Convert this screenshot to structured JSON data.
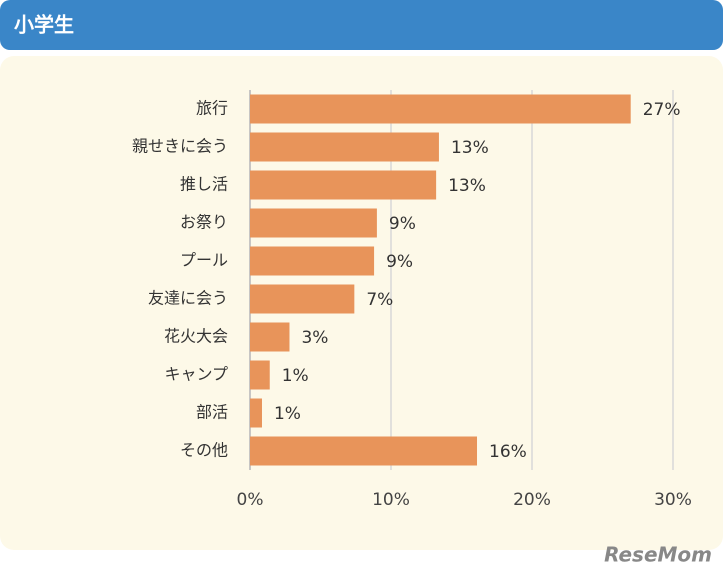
{
  "header": {
    "title": "小学生"
  },
  "chart_data": {
    "type": "bar",
    "orientation": "horizontal",
    "categories": [
      "旅行",
      "親せきに会う",
      "推し活",
      "お祭り",
      "プール",
      "友達に会う",
      "花火大会",
      "キャンプ",
      "部活",
      "その他"
    ],
    "values": [
      27,
      13.4,
      13.2,
      9,
      8.8,
      7.4,
      2.8,
      1.4,
      0.85,
      16.1
    ],
    "value_labels": [
      "27%",
      "13%",
      "13%",
      "9%",
      "9%",
      "7%",
      "3%",
      "1%",
      "1%",
      "16%"
    ],
    "color": "#e8945a",
    "xlim": [
      0,
      30
    ],
    "xticks": [
      {
        "value": 0,
        "label": "0%"
      },
      {
        "value": 10,
        "label": "10%"
      },
      {
        "value": 20,
        "label": "20%"
      },
      {
        "value": 30,
        "label": "30%"
      }
    ],
    "grid": true
  },
  "watermark": "ReseMom"
}
